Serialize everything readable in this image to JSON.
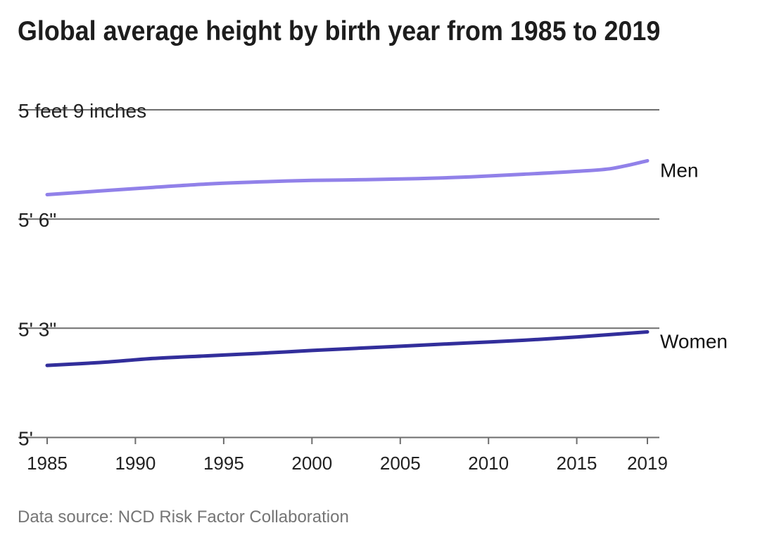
{
  "title": "Global average height by birth year from 1985 to 2019",
  "footer": {
    "source_label": "Data source: NCD Risk Factor Collaboration"
  },
  "colors": {
    "background": "#ffffff",
    "title_text": "#1d1d1d",
    "axis_text": "#212121",
    "grid": "#6e6e6e",
    "footer_text": "#757575",
    "men_line": "#9181e9",
    "women_line": "#322e9b"
  },
  "chart_data": {
    "type": "line",
    "title": "Global average height by birth year from 1985 to 2019",
    "xlabel": "",
    "ylabel": "",
    "unit": "inches",
    "x": [
      1985,
      1988,
      1991,
      1994,
      1997,
      2000,
      2003,
      2006,
      2009,
      2012,
      2015,
      2017,
      2019
    ],
    "series": [
      {
        "name": "Men",
        "color": "#9181e9",
        "values": [
          66.67,
          66.77,
          66.87,
          66.96,
          67.02,
          67.06,
          67.08,
          67.11,
          67.16,
          67.23,
          67.31,
          67.39,
          67.6
        ]
      },
      {
        "name": "Women",
        "color": "#322e9b",
        "values": [
          61.98,
          62.06,
          62.17,
          62.24,
          62.31,
          62.39,
          62.46,
          62.53,
          62.6,
          62.67,
          62.76,
          62.83,
          62.9
        ]
      }
    ],
    "x_ticks": [
      1985,
      1990,
      1995,
      2000,
      2005,
      2010,
      2015,
      2019
    ],
    "y_ticks": [
      {
        "value": 69,
        "label": "5 feet 9 inches"
      },
      {
        "value": 66,
        "label": "5' 6\""
      },
      {
        "value": 63,
        "label": "5' 3\""
      },
      {
        "value": 60,
        "label": "5'"
      }
    ],
    "xlim": [
      1985,
      2019
    ],
    "ylim": [
      60,
      69
    ],
    "grid": "horizontal",
    "legend_position": "line-end-labels"
  }
}
